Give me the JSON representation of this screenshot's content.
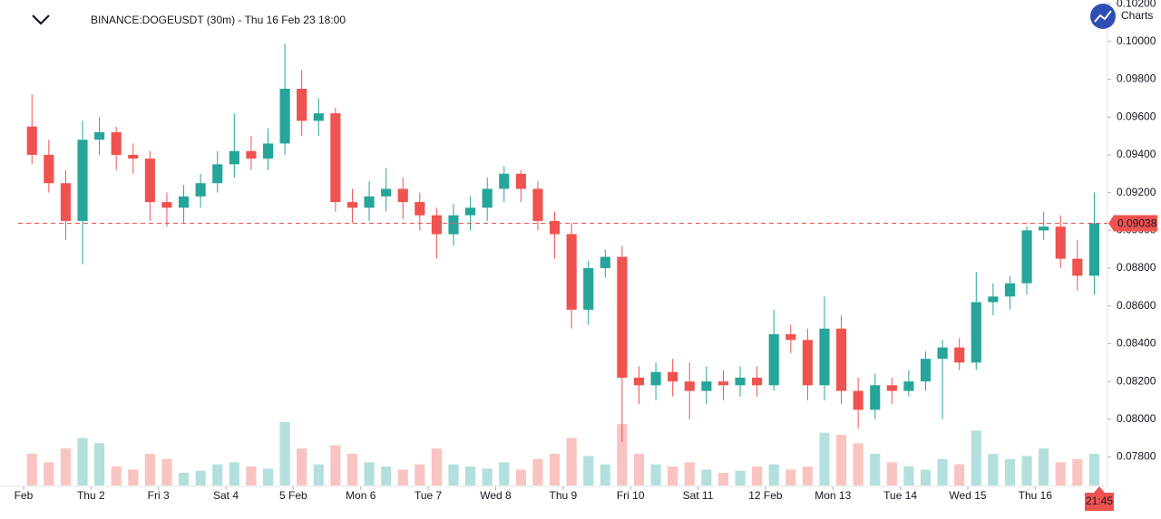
{
  "toolbar": {
    "button": "Charts"
  },
  "chart_data": {
    "type": "candlestick",
    "title": "BINANCE:DOGEUSDT (30m) - Thu 16 Feb 23 18:00",
    "up_color": "#26a69a",
    "down_color": "#ef5350",
    "x": [
      1.125,
      1.375,
      1.625,
      1.875,
      2.125,
      2.375,
      2.625,
      2.875,
      3.125,
      3.375,
      3.625,
      3.875,
      4.125,
      4.375,
      4.625,
      4.875,
      5.125,
      5.375,
      5.625,
      5.875,
      6.125,
      6.375,
      6.625,
      6.875,
      7.125,
      7.375,
      7.625,
      7.875,
      8.125,
      8.375,
      8.625,
      8.875,
      9.125,
      9.375,
      9.625,
      9.875,
      10.125,
      10.375,
      10.625,
      10.875,
      11.125,
      11.375,
      11.625,
      11.875,
      12.125,
      12.375,
      12.625,
      12.875,
      13.125,
      13.375,
      13.625,
      13.875,
      14.125,
      14.375,
      14.625,
      14.875,
      15.125,
      15.375,
      15.625,
      15.875,
      16.125,
      16.375,
      16.625,
      16.875
    ],
    "open": [
      0.0955,
      0.094,
      0.0925,
      0.0905,
      0.0948,
      0.0952,
      0.094,
      0.0938,
      0.0915,
      0.0912,
      0.0918,
      0.0925,
      0.0935,
      0.0942,
      0.0938,
      0.0946,
      0.0975,
      0.0958,
      0.0962,
      0.0915,
      0.0912,
      0.0918,
      0.0922,
      0.0915,
      0.0908,
      0.0898,
      0.0908,
      0.0912,
      0.0922,
      0.093,
      0.0922,
      0.0905,
      0.0898,
      0.0858,
      0.088,
      0.0886,
      0.0822,
      0.0818,
      0.0825,
      0.082,
      0.0815,
      0.082,
      0.0818,
      0.0822,
      0.0818,
      0.0845,
      0.0842,
      0.0818,
      0.0848,
      0.0815,
      0.0805,
      0.0818,
      0.0815,
      0.082,
      0.0832,
      0.0838,
      0.083,
      0.0862,
      0.0865,
      0.0872,
      0.09,
      0.0902,
      0.0885,
      0.0876
    ],
    "high": [
      0.0972,
      0.0948,
      0.0932,
      0.0958,
      0.096,
      0.0955,
      0.0946,
      0.0942,
      0.092,
      0.0924,
      0.093,
      0.0942,
      0.0962,
      0.095,
      0.0954,
      0.0999,
      0.0985,
      0.097,
      0.0965,
      0.0922,
      0.0926,
      0.0933,
      0.0928,
      0.092,
      0.0912,
      0.0914,
      0.0918,
      0.0928,
      0.0934,
      0.0932,
      0.0926,
      0.091,
      0.0904,
      0.0884,
      0.089,
      0.0892,
      0.0828,
      0.083,
      0.0832,
      0.083,
      0.0828,
      0.0826,
      0.0828,
      0.0828,
      0.0858,
      0.085,
      0.0848,
      0.0865,
      0.0855,
      0.0822,
      0.0824,
      0.0822,
      0.0826,
      0.0836,
      0.0842,
      0.0843,
      0.0878,
      0.0872,
      0.0876,
      0.0902,
      0.091,
      0.0908,
      0.0895,
      0.092
    ],
    "low": [
      0.0935,
      0.092,
      0.0895,
      0.0882,
      0.094,
      0.0932,
      0.093,
      0.0905,
      0.0902,
      0.0904,
      0.0912,
      0.092,
      0.0928,
      0.0932,
      0.0932,
      0.094,
      0.095,
      0.095,
      0.091,
      0.0904,
      0.0905,
      0.091,
      0.0906,
      0.09,
      0.0885,
      0.0892,
      0.09,
      0.0905,
      0.0915,
      0.0915,
      0.09,
      0.0885,
      0.0848,
      0.085,
      0.0875,
      0.0788,
      0.0808,
      0.081,
      0.0812,
      0.08,
      0.0808,
      0.081,
      0.0812,
      0.0812,
      0.0815,
      0.0835,
      0.081,
      0.081,
      0.0808,
      0.0795,
      0.08,
      0.0808,
      0.0812,
      0.0815,
      0.08,
      0.0826,
      0.0826,
      0.0855,
      0.0858,
      0.0866,
      0.0895,
      0.088,
      0.0868,
      0.0866
    ],
    "close": [
      0.094,
      0.0925,
      0.0905,
      0.0948,
      0.0952,
      0.094,
      0.0938,
      0.0915,
      0.0912,
      0.0918,
      0.0925,
      0.0935,
      0.0942,
      0.0938,
      0.0946,
      0.0975,
      0.0958,
      0.0962,
      0.0915,
      0.0912,
      0.0918,
      0.0922,
      0.0915,
      0.0908,
      0.0898,
      0.0908,
      0.0912,
      0.0922,
      0.093,
      0.0922,
      0.0905,
      0.0898,
      0.0858,
      0.088,
      0.0886,
      0.0822,
      0.0818,
      0.0825,
      0.082,
      0.0815,
      0.082,
      0.0818,
      0.0822,
      0.0818,
      0.0845,
      0.0842,
      0.0818,
      0.0848,
      0.0815,
      0.0805,
      0.0818,
      0.0815,
      0.082,
      0.0832,
      0.0838,
      0.083,
      0.0862,
      0.0865,
      0.0872,
      0.09,
      0.0902,
      0.0885,
      0.0876,
      0.09038
    ],
    "volume": [
      30,
      22,
      35,
      45,
      40,
      18,
      15,
      30,
      25,
      12,
      14,
      20,
      22,
      18,
      16,
      60,
      35,
      20,
      38,
      30,
      22,
      18,
      15,
      20,
      35,
      20,
      18,
      16,
      22,
      15,
      25,
      30,
      45,
      28,
      20,
      58,
      30,
      20,
      18,
      22,
      15,
      12,
      14,
      18,
      20,
      15,
      18,
      50,
      48,
      40,
      30,
      22,
      18,
      15,
      25,
      20,
      52,
      30,
      25,
      28,
      35,
      22,
      25,
      30
    ],
    "last_price": 0.09038,
    "current_time": "21:45",
    "ylim": [
      0.0763,
      0.1022
    ],
    "yticks": [
      {
        "value": 0.078,
        "label": "0.07800"
      },
      {
        "value": 0.08,
        "label": "0.08000"
      },
      {
        "value": 0.082,
        "label": "0.08200"
      },
      {
        "value": 0.084,
        "label": "0.08400"
      },
      {
        "value": 0.086,
        "label": "0.08600"
      },
      {
        "value": 0.088,
        "label": "0.08800"
      },
      {
        "value": 0.09,
        "label": "0.09000"
      },
      {
        "value": 0.092,
        "label": "0.09200"
      },
      {
        "value": 0.094,
        "label": "0.09400"
      },
      {
        "value": 0.096,
        "label": "0.09600"
      },
      {
        "value": 0.098,
        "label": "0.09800"
      },
      {
        "value": 0.1,
        "label": "0.10000"
      },
      {
        "value": 0.102,
        "label": "0.10200"
      }
    ],
    "xlim": [
      0.92,
      16.95
    ],
    "xticks": [
      {
        "value": 1,
        "label": "Feb"
      },
      {
        "value": 2,
        "label": "Thu 2"
      },
      {
        "value": 3,
        "label": "Fri 3"
      },
      {
        "value": 4,
        "label": "Sat 4"
      },
      {
        "value": 5,
        "label": "5 Feb"
      },
      {
        "value": 6,
        "label": "Mon 6"
      },
      {
        "value": 7,
        "label": "Tue 7"
      },
      {
        "value": 8,
        "label": "Wed 8"
      },
      {
        "value": 9,
        "label": "Thu 9"
      },
      {
        "value": 10,
        "label": "Fri 10"
      },
      {
        "value": 11,
        "label": "Sat 11"
      },
      {
        "value": 12,
        "label": "12 Feb"
      },
      {
        "value": 13,
        "label": "Mon 13"
      },
      {
        "value": 14,
        "label": "Tue 14"
      },
      {
        "value": 15,
        "label": "Wed 15"
      },
      {
        "value": 16,
        "label": "Thu 16"
      }
    ]
  }
}
